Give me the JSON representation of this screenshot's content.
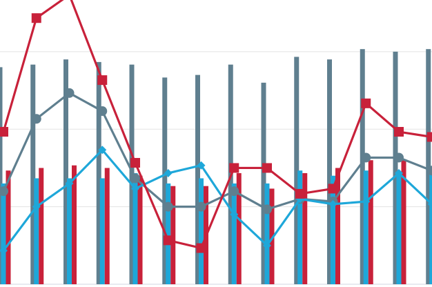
{
  "chart_data": {
    "type": "bar",
    "categories": [
      "",
      "",
      "",
      "",
      "",
      "",
      "",
      "",
      "",
      "",
      "",
      "",
      "",
      ""
    ],
    "ylim": [
      0,
      110
    ],
    "grid": true,
    "legend": "none",
    "series": [
      {
        "type": "bar",
        "color": "#5f7f8f",
        "values": [
          84,
          85,
          87,
          86,
          85,
          80,
          81,
          85,
          78,
          88,
          87,
          91,
          90,
          91
        ]
      },
      {
        "type": "bar",
        "color": "#1ea7d9",
        "values": [
          39,
          41,
          41,
          41,
          43,
          39,
          41,
          39,
          39,
          44,
          42,
          44,
          43,
          43
        ]
      },
      {
        "type": "bar",
        "color": "#c8213a",
        "values": [
          44,
          45,
          46,
          45,
          42,
          38,
          38,
          43,
          37,
          43,
          45,
          48,
          48,
          48
        ]
      },
      {
        "type": "line",
        "color": "#5f7f8f",
        "marker": "circle",
        "values": [
          36,
          64,
          74,
          67,
          41,
          30,
          30,
          36,
          29,
          33,
          32,
          49,
          49,
          44
        ]
      },
      {
        "type": "line",
        "color": "#1ea7d9",
        "marker": "diamond",
        "values": [
          13,
          30,
          39,
          52,
          37,
          43,
          46,
          27,
          15,
          33,
          31,
          32,
          43,
          31
        ]
      },
      {
        "type": "line",
        "color": "#c8213a",
        "marker": "square",
        "values": [
          59,
          103,
          112,
          79,
          47,
          17,
          14,
          45,
          45,
          35,
          37,
          70,
          59,
          57
        ]
      }
    ]
  }
}
